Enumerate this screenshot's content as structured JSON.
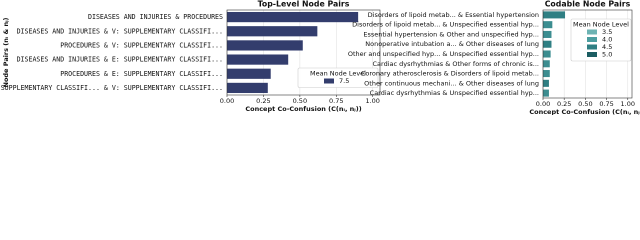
{
  "chart_data": [
    {
      "type": "bar",
      "orientation": "horizontal",
      "title": "Top-Level Node Pairs",
      "ylabel": "Node Pairs (nᵢ & nⱼ)",
      "xlabel": "Concept Co-Confusion (C(nᵢ, nⱼ))",
      "categories": [
        "DISEASES AND INJURIES & PROCEDURES",
        "DISEASES AND INJURIES & V: SUPPLEMENTARY CLASSIFI...",
        "PROCEDURES & V: SUPPLEMENTARY CLASSIFI...",
        "DISEASES AND INJURIES & E: SUPPLEMENTARY CLASSIFI...",
        "PROCEDURES & E: SUPPLEMENTARY CLASSIFI...",
        "E: SUPPLEMENTARY CLASSIFI... & V: SUPPLEMENTARY CLASSIFI..."
      ],
      "values": [
        0.9,
        0.62,
        0.52,
        0.42,
        0.3,
        0.28
      ],
      "colors": [
        "#333d6d",
        "#333d6d",
        "#333d6d",
        "#333d6d",
        "#333d6d",
        "#333d6d"
      ],
      "xlim": [
        0,
        1.05
      ],
      "xticks": [
        {
          "value": 0,
          "label": "0.00"
        },
        {
          "value": 0.25,
          "label": "0.25"
        },
        {
          "value": 0.5,
          "label": "0.50"
        },
        {
          "value": 0.75,
          "label": "0.75"
        },
        {
          "value": 1,
          "label": "1.00"
        }
      ],
      "grid": true,
      "legend": {
        "title": "Mean Node Level",
        "entries": [
          {
            "label": "7.5",
            "color": "#333d6d"
          }
        ]
      }
    },
    {
      "type": "bar",
      "orientation": "horizontal",
      "title": "Codable Node Pairs",
      "xlabel": "Concept Co-Confusion (C(nᵢ, nⱼ))",
      "categories": [
        "Disorders of lipoid metab... & Essential hypertension",
        "Disorders of lipoid metab... & Unspecified essential hyp...",
        "Essential hypertension & Other and unspecified hyp...",
        "Nonoperative intubation a... & Other diseases of lung",
        "Other and unspecified hyp... & Unspecified essential hyp...",
        "Cardiac dysrhythmias & Other forms of chronic is...",
        "Coronary atherosclerosis & Disorders of lipoid metab...",
        "Other continuous mechani... & Other diseases of lung",
        "Cardiac dysrhythmias & Unspecified essential hyp..."
      ],
      "values": [
        0.26,
        0.11,
        0.1,
        0.1,
        0.09,
        0.08,
        0.08,
        0.07,
        0.07
      ],
      "colors": [
        "#2f7f83",
        "#3c8d90",
        "#3c8d90",
        "#2f7f83",
        "#3c8d90",
        "#3c8d90",
        "#3c8d90",
        "#2f7f83",
        "#3c8d90"
      ],
      "xlim": [
        0,
        1.05
      ],
      "xticks": [
        {
          "value": 0,
          "label": "0.00"
        },
        {
          "value": 0.25,
          "label": "0.25"
        },
        {
          "value": 0.5,
          "label": "0.50"
        },
        {
          "value": 0.75,
          "label": "0.75"
        },
        {
          "value": 1,
          "label": "1.00"
        }
      ],
      "grid": true,
      "legend": {
        "title": "Mean Node Level",
        "entries": [
          {
            "label": "3.5",
            "color": "#6db3b3"
          },
          {
            "label": "4.0",
            "color": "#4c9ea0"
          },
          {
            "label": "4.5",
            "color": "#2f7f83"
          },
          {
            "label": "5.0",
            "color": "#1b5d62"
          }
        ]
      }
    }
  ]
}
